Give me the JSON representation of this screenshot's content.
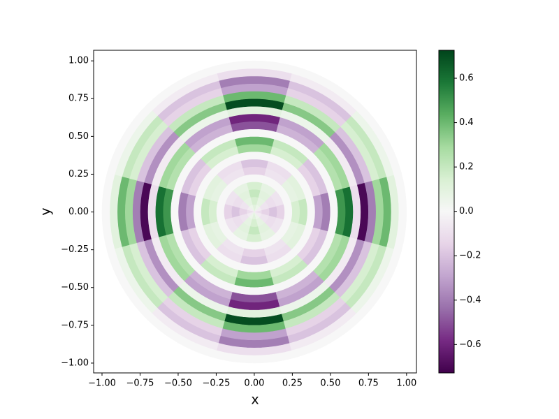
{
  "chart_data": {
    "type": "polar-heatmap",
    "xlabel": "x",
    "ylabel": "y",
    "xlim": [
      -1.055,
      1.065
    ],
    "ylim": [
      -1.065,
      1.07
    ],
    "xticks": [
      {
        "value": -1,
        "label": "−1.00"
      },
      {
        "value": -0.75,
        "label": "−0.75"
      },
      {
        "value": -0.5,
        "label": "−0.50"
      },
      {
        "value": -0.25,
        "label": "−0.25"
      },
      {
        "value": 0,
        "label": "0.00"
      },
      {
        "value": 0.25,
        "label": "0.25"
      },
      {
        "value": 0.5,
        "label": "0.50"
      },
      {
        "value": 0.75,
        "label": "0.75"
      },
      {
        "value": 1,
        "label": "1.00"
      }
    ],
    "yticks": [
      {
        "value": -1,
        "label": "−1.00"
      },
      {
        "value": -0.75,
        "label": "−0.75"
      },
      {
        "value": -0.5,
        "label": "−0.50"
      },
      {
        "value": -0.25,
        "label": "−0.25"
      },
      {
        "value": 0,
        "label": "0.00"
      },
      {
        "value": 0.25,
        "label": "0.25"
      },
      {
        "value": 0.5,
        "label": "0.50"
      },
      {
        "value": 0.75,
        "label": "0.75"
      },
      {
        "value": 1,
        "label": "1.00"
      }
    ],
    "colormap": [
      "#40004b",
      "#762a83",
      "#9970ab",
      "#c2a5cf",
      "#e7d4e8",
      "#f7f7f7",
      "#d9f0d3",
      "#a6dba0",
      "#5aae61",
      "#1b7837",
      "#00441b"
    ],
    "clim": [
      -0.728,
      0.726
    ],
    "cticks": [
      {
        "value": -0.6,
        "label": "−0.6"
      },
      {
        "value": -0.4,
        "label": "−0.4"
      },
      {
        "value": -0.2,
        "label": "−0.2"
      },
      {
        "value": 0,
        "label": "0.0"
      },
      {
        "value": 0.2,
        "label": "0.2"
      },
      {
        "value": 0.4,
        "label": "0.4"
      },
      {
        "value": 0.6,
        "label": "0.6"
      }
    ],
    "r_edges": [
      0,
      0.05,
      0.1,
      0.15,
      0.2,
      0.25,
      0.3,
      0.35,
      0.4,
      0.45,
      0.5,
      0.55,
      0.6,
      0.65,
      0.7,
      0.75,
      0.8,
      0.85,
      0.9,
      0.95,
      1.0
    ],
    "theta": [
      0,
      30,
      60,
      90,
      120,
      150,
      180,
      210,
      240,
      270,
      300,
      330
    ],
    "z": [
      [
        -0.1,
        -0.05,
        0.05,
        0.1,
        0.05,
        -0.05,
        -0.1,
        -0.05,
        0.05,
        0.1,
        0.05,
        -0.05
      ],
      [
        -0.15,
        -0.08,
        0.08,
        0.15,
        0.08,
        -0.08,
        -0.15,
        -0.08,
        0.08,
        0.15,
        0.08,
        -0.08
      ],
      [
        -0.2,
        -0.1,
        0.1,
        0.2,
        0.1,
        -0.1,
        -0.2,
        -0.1,
        0.1,
        0.2,
        0.1,
        -0.1
      ],
      [
        -0.15,
        -0.08,
        0.08,
        0.15,
        0.08,
        -0.08,
        -0.15,
        -0.08,
        0.08,
        0.15,
        0.08,
        -0.08
      ],
      [
        0,
        0,
        0,
        0,
        0,
        0,
        0,
        0,
        0,
        0,
        0,
        0
      ],
      [
        0.15,
        0.08,
        -0.08,
        -0.15,
        -0.08,
        0.08,
        0.15,
        0.08,
        -0.08,
        -0.15,
        -0.08,
        0.08
      ],
      [
        0.2,
        0.1,
        -0.1,
        -0.2,
        -0.1,
        0.1,
        0.2,
        0.1,
        -0.1,
        -0.2,
        -0.1,
        0.1
      ],
      [
        0,
        0,
        0,
        0,
        0,
        0,
        0,
        0,
        0,
        0,
        0,
        0
      ],
      [
        -0.3,
        -0.15,
        0.15,
        0.3,
        0.15,
        -0.15,
        -0.3,
        -0.15,
        0.15,
        0.3,
        0.15,
        -0.15
      ],
      [
        -0.4,
        -0.2,
        0.2,
        0.4,
        0.2,
        -0.2,
        -0.4,
        -0.2,
        0.2,
        0.4,
        0.2,
        -0.2
      ],
      [
        0,
        0,
        0,
        0,
        0,
        0,
        0,
        0,
        0,
        0,
        0,
        0
      ],
      [
        0.5,
        0.25,
        -0.25,
        -0.5,
        -0.25,
        0.25,
        0.5,
        0.25,
        -0.25,
        -0.5,
        -0.25,
        0.25
      ],
      [
        0.6,
        0.3,
        -0.3,
        -0.6,
        -0.3,
        0.3,
        0.6,
        0.3,
        -0.3,
        -0.6,
        -0.3,
        0.3
      ],
      [
        -0.1,
        -0.05,
        0.05,
        0.1,
        0.05,
        -0.05,
        -0.1,
        -0.05,
        0.05,
        0.1,
        0.05,
        -0.05
      ],
      [
        -0.7,
        -0.35,
        0.35,
        0.7,
        0.35,
        -0.35,
        -0.7,
        -0.35,
        0.35,
        0.7,
        0.35,
        -0.35
      ],
      [
        -0.4,
        -0.2,
        0.2,
        0.4,
        0.2,
        -0.2,
        -0.4,
        -0.2,
        0.2,
        0.4,
        0.2,
        -0.2
      ],
      [
        0.3,
        0.15,
        -0.15,
        -0.3,
        -0.15,
        0.15,
        0.3,
        0.15,
        -0.15,
        -0.3,
        -0.15,
        0.15
      ],
      [
        0.4,
        0.2,
        -0.2,
        -0.4,
        -0.2,
        0.2,
        0.4,
        0.2,
        -0.2,
        -0.4,
        -0.2,
        0.2
      ],
      [
        0.1,
        0.05,
        -0.05,
        -0.1,
        -0.05,
        0.05,
        0.1,
        0.05,
        -0.05,
        -0.1,
        -0.05,
        0.05
      ],
      [
        0,
        0,
        0,
        0,
        0,
        0,
        0,
        0,
        0,
        0,
        0,
        0
      ]
    ]
  }
}
